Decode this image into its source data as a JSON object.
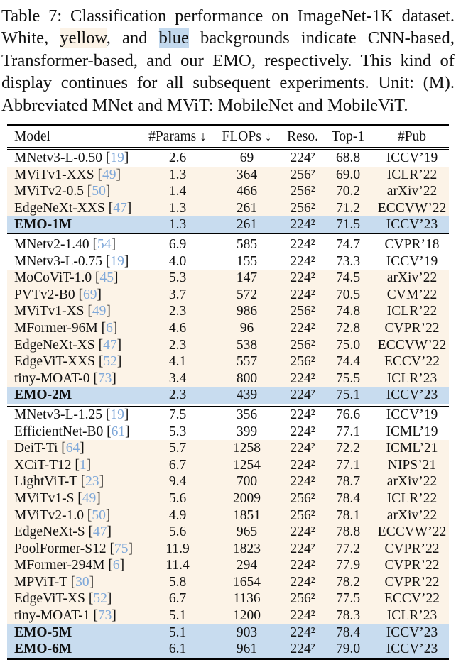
{
  "caption": {
    "lines": [
      [
        {
          "t": "Table 7: Classification performance on ImageNet-1K dataset."
        }
      ],
      [
        {
          "t": "White, "
        },
        {
          "t": "yellow",
          "hl": "yellow"
        },
        {
          "t": ", and "
        },
        {
          "t": "blue",
          "hl": "blue"
        },
        {
          "t": " backgrounds indicate CNN-based,"
        }
      ],
      [
        {
          "t": "Transformer-based, and our EMO, respectively. This kind of"
        }
      ],
      [
        {
          "t": "display continues for all subsequent experiments. Unit: (M)."
        }
      ],
      [
        {
          "t": "Abbreviated MNet and MViT: MobileNet and MobileViT."
        }
      ]
    ]
  },
  "colors": {
    "text": "#111111",
    "rule": "#000000",
    "transformer_row_bg": "#fcf3e7",
    "emo_row_bg": "#c8dcef",
    "caption_yellow_hl": "#fcf3e7",
    "caption_blue_hl": "#c3d9ee",
    "citation": "#7fa8d9"
  },
  "table": {
    "columns": [
      {
        "label": "Model"
      },
      {
        "label": "#Params ↓"
      },
      {
        "label": "FLOPs ↓"
      },
      {
        "label": "Reso."
      },
      {
        "label": "Top-1"
      },
      {
        "label": "#Pub"
      }
    ],
    "sections": [
      {
        "rows": [
          {
            "model": "MNetv3-L-0.50",
            "cite": "19",
            "params": "2.6",
            "flops": "69",
            "reso": "224²",
            "top1": "68.8",
            "pub": "ICCV’19",
            "type": "cnn"
          },
          {
            "model": "MViTv1-XXS",
            "cite": "49",
            "params": "1.3",
            "flops": "364",
            "reso": "256²",
            "top1": "69.0",
            "pub": "ICLR’22",
            "type": "tr"
          },
          {
            "model": "MViTv2-0.5",
            "cite": "50",
            "params": "1.4",
            "flops": "466",
            "reso": "256²",
            "top1": "70.2",
            "pub": "arXiv’22",
            "type": "tr"
          },
          {
            "model": "EdgeNeXt-XXS",
            "cite": "47",
            "params": "1.3",
            "flops": "261",
            "reso": "256²",
            "top1": "71.2",
            "pub": "ECCVW’22",
            "type": "tr"
          },
          {
            "model": "EMO-1M",
            "params": "1.3",
            "flops": "261",
            "reso": "224²",
            "top1": "71.5",
            "pub": "ICCV’23",
            "type": "emo"
          }
        ]
      },
      {
        "rows": [
          {
            "model": "MNetv2-1.40",
            "cite": "54",
            "params": "6.9",
            "flops": "585",
            "reso": "224²",
            "top1": "74.7",
            "pub": "CVPR’18",
            "type": "cnn"
          },
          {
            "model": "MNetv3-L-0.75",
            "cite": "19",
            "params": "4.0",
            "flops": "155",
            "reso": "224²",
            "top1": "73.3",
            "pub": "ICCV’19",
            "type": "cnn"
          },
          {
            "model": "MoCoViT-1.0",
            "cite": "45",
            "params": "5.3",
            "flops": "147",
            "reso": "224²",
            "top1": "74.5",
            "pub": "arXiv’22",
            "type": "tr"
          },
          {
            "model": "PVTv2-B0",
            "cite": "69",
            "params": "3.7",
            "flops": "572",
            "reso": "224²",
            "top1": "70.5",
            "pub": "CVM’22",
            "type": "tr"
          },
          {
            "model": "MViTv1-XS",
            "cite": "49",
            "params": "2.3",
            "flops": "986",
            "reso": "256²",
            "top1": "74.8",
            "pub": "ICLR’22",
            "type": "tr"
          },
          {
            "model": "MFormer-96M",
            "cite": "6",
            "params": "4.6",
            "flops": "96",
            "reso": "224²",
            "top1": "72.8",
            "pub": "CVPR’22",
            "type": "tr"
          },
          {
            "model": "EdgeNeXt-XS",
            "cite": "47",
            "params": "2.3",
            "flops": "538",
            "reso": "256²",
            "top1": "75.0",
            "pub": "ECCVW’22",
            "type": "tr"
          },
          {
            "model": "EdgeViT-XXS",
            "cite": "52",
            "params": "4.1",
            "flops": "557",
            "reso": "256²",
            "top1": "74.4",
            "pub": "ECCV’22",
            "type": "tr"
          },
          {
            "model": "tiny-MOAT-0",
            "cite": "73",
            "params": "3.4",
            "flops": "800",
            "reso": "224²",
            "top1": "75.5",
            "pub": "ICLR’23",
            "type": "tr"
          },
          {
            "model": "EMO-2M",
            "params": "2.3",
            "flops": "439",
            "reso": "224²",
            "top1": "75.1",
            "pub": "ICCV’23",
            "type": "emo"
          }
        ]
      },
      {
        "rows": [
          {
            "model": "MNetv3-L-1.25",
            "cite": "19",
            "params": "7.5",
            "flops": "356",
            "reso": "224²",
            "top1": "76.6",
            "pub": "ICCV’19",
            "type": "cnn"
          },
          {
            "model": "EfficientNet-B0",
            "cite": "61",
            "params": "5.3",
            "flops": "399",
            "reso": "224²",
            "top1": "77.1",
            "pub": "ICML’19",
            "type": "cnn"
          },
          {
            "model": "DeiT-Ti",
            "cite": "64",
            "params": "5.7",
            "flops": "1258",
            "reso": "224²",
            "top1": "72.2",
            "pub": "ICML’21",
            "type": "tr"
          },
          {
            "model": "XCiT-T12",
            "cite": "1",
            "params": "6.7",
            "flops": "1254",
            "reso": "224²",
            "top1": "77.1",
            "pub": "NIPS’21",
            "type": "tr"
          },
          {
            "model": "LightViT-T",
            "cite": "23",
            "params": "9.4",
            "flops": "700",
            "reso": "224²",
            "top1": "78.7",
            "pub": "arXiv’22",
            "type": "tr"
          },
          {
            "model": "MViTv1-S",
            "cite": "49",
            "params": "5.6",
            "flops": "2009",
            "reso": "256²",
            "top1": "78.4",
            "pub": "ICLR’22",
            "type": "tr"
          },
          {
            "model": "MViTv2-1.0",
            "cite": "50",
            "params": "4.9",
            "flops": "1851",
            "reso": "256²",
            "top1": "78.1",
            "pub": "arXiv’22",
            "type": "tr"
          },
          {
            "model": "EdgeNeXt-S",
            "cite": "47",
            "params": "5.6",
            "flops": "965",
            "reso": "224²",
            "top1": "78.8",
            "pub": "ECCVW’22",
            "type": "tr"
          },
          {
            "model": "PoolFormer-S12",
            "cite": "75",
            "params": "11.9",
            "flops": "1823",
            "reso": "224²",
            "top1": "77.2",
            "pub": "CVPR’22",
            "type": "tr"
          },
          {
            "model": "MFormer-294M",
            "cite": "6",
            "params": "11.4",
            "flops": "294",
            "reso": "224²",
            "top1": "77.9",
            "pub": "CVPR’22",
            "type": "tr"
          },
          {
            "model": "MPViT-T",
            "cite": "30",
            "params": "5.8",
            "flops": "1654",
            "reso": "224²",
            "top1": "78.2",
            "pub": "CVPR’22",
            "type": "tr"
          },
          {
            "model": "EdgeViT-XS",
            "cite": "52",
            "params": "6.7",
            "flops": "1136",
            "reso": "256²",
            "top1": "77.5",
            "pub": "ECCV’22",
            "type": "tr"
          },
          {
            "model": "tiny-MOAT-1",
            "cite": "73",
            "params": "5.1",
            "flops": "1200",
            "reso": "224²",
            "top1": "78.3",
            "pub": "ICLR’23",
            "type": "tr"
          },
          {
            "model": "EMO-5M",
            "params": "5.1",
            "flops": "903",
            "reso": "224²",
            "top1": "78.4",
            "pub": "ICCV’23",
            "type": "emo"
          },
          {
            "model": "EMO-6M",
            "params": "6.1",
            "flops": "961",
            "reso": "224²",
            "top1": "79.0",
            "pub": "ICCV’23",
            "type": "emo"
          }
        ]
      }
    ]
  }
}
